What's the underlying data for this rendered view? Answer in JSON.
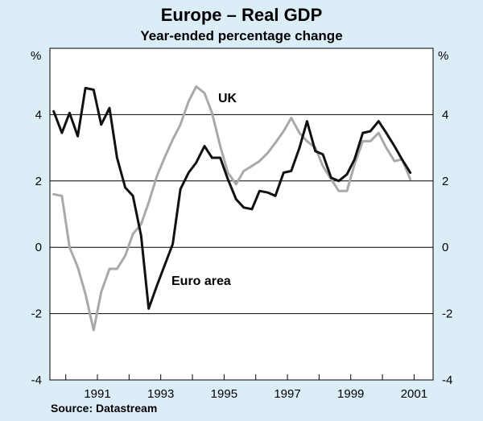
{
  "chart_data": {
    "type": "line",
    "title": "Europe – Real GDP",
    "subtitle": "Year-ended percentage change",
    "y_unit_left": "%",
    "y_unit_right": "%",
    "ylim": [
      -4,
      6
    ],
    "xlim": [
      1989.5,
      2001.6
    ],
    "y_ticks": [
      -4,
      -2,
      0,
      2,
      4
    ],
    "y_tick_labels": [
      "-4",
      "-2",
      "0",
      "2",
      "4"
    ],
    "x_ticks": [
      1991,
      1993,
      1995,
      1997,
      1999,
      2001
    ],
    "x_tick_labels": [
      "1991",
      "1993",
      "1995",
      "1997",
      "1999",
      "2001"
    ],
    "source": "Source: Datastream",
    "colors": {
      "background": "#dbeef7",
      "plot_area": "#ffffff",
      "euro": "#111111",
      "uk": "#a8a9aa",
      "axis": "#000000"
    },
    "series": [
      {
        "name": "Euro area",
        "label": "Euro area",
        "color": "#111111",
        "x": [
          1989.62,
          1989.88,
          1990.12,
          1990.38,
          1990.62,
          1990.88,
          1991.12,
          1991.38,
          1991.62,
          1991.88,
          1992.12,
          1992.38,
          1992.62,
          1992.88,
          1993.12,
          1993.38,
          1993.62,
          1993.88,
          1994.12,
          1994.38,
          1994.62,
          1994.88,
          1995.12,
          1995.38,
          1995.62,
          1995.88,
          1996.12,
          1996.38,
          1996.62,
          1996.88,
          1997.12,
          1997.38,
          1997.62,
          1997.88,
          1998.12,
          1998.38,
          1998.62,
          1998.88,
          1999.12,
          1999.38,
          1999.62,
          1999.88,
          2000.12,
          2000.38,
          2000.62,
          2000.88,
          2001.12
        ],
        "values": [
          4.1,
          3.45,
          4.05,
          3.35,
          4.8,
          4.75,
          3.7,
          4.2,
          2.7,
          1.8,
          1.55,
          0.35,
          -1.85,
          -1.15,
          -0.55,
          0.1,
          1.75,
          2.25,
          2.55,
          3.05,
          2.7,
          2.7,
          2.05,
          1.45,
          1.2,
          1.15,
          1.7,
          1.65,
          1.55,
          2.25,
          2.3,
          3.0,
          3.8,
          2.9,
          2.8,
          2.1,
          2.0,
          2.2,
          2.65,
          3.45,
          3.5,
          3.8,
          3.45,
          3.05,
          2.65,
          2.25,
          null
        ]
      },
      {
        "name": "UK",
        "label": "UK",
        "color": "#a8a9aa",
        "x": [
          1989.62,
          1989.88,
          1990.12,
          1990.38,
          1990.62,
          1990.88,
          1991.12,
          1991.38,
          1991.62,
          1991.88,
          1992.12,
          1992.38,
          1992.62,
          1992.88,
          1993.12,
          1993.38,
          1993.62,
          1993.88,
          1994.12,
          1994.38,
          1994.62,
          1994.88,
          1995.12,
          1995.38,
          1995.62,
          1995.88,
          1996.12,
          1996.38,
          1996.62,
          1996.88,
          1997.12,
          1997.38,
          1997.62,
          1997.88,
          1998.12,
          1998.38,
          1998.62,
          1998.88,
          1999.12,
          1999.38,
          1999.62,
          1999.88,
          2000.12,
          2000.38,
          2000.62,
          2000.88,
          2001.12
        ],
        "values": [
          1.6,
          1.55,
          0.0,
          -0.6,
          -1.4,
          -2.5,
          -1.35,
          -0.65,
          -0.65,
          -0.25,
          0.4,
          0.7,
          1.35,
          2.15,
          2.7,
          3.25,
          3.7,
          4.4,
          4.85,
          4.65,
          4.05,
          3.05,
          2.25,
          1.9,
          2.3,
          2.45,
          2.6,
          2.85,
          3.15,
          3.5,
          3.9,
          3.45,
          3.2,
          3.0,
          2.45,
          2.05,
          1.7,
          1.7,
          2.5,
          3.2,
          3.2,
          3.45,
          3.0,
          2.6,
          2.65,
          2.05,
          null
        ]
      }
    ]
  }
}
